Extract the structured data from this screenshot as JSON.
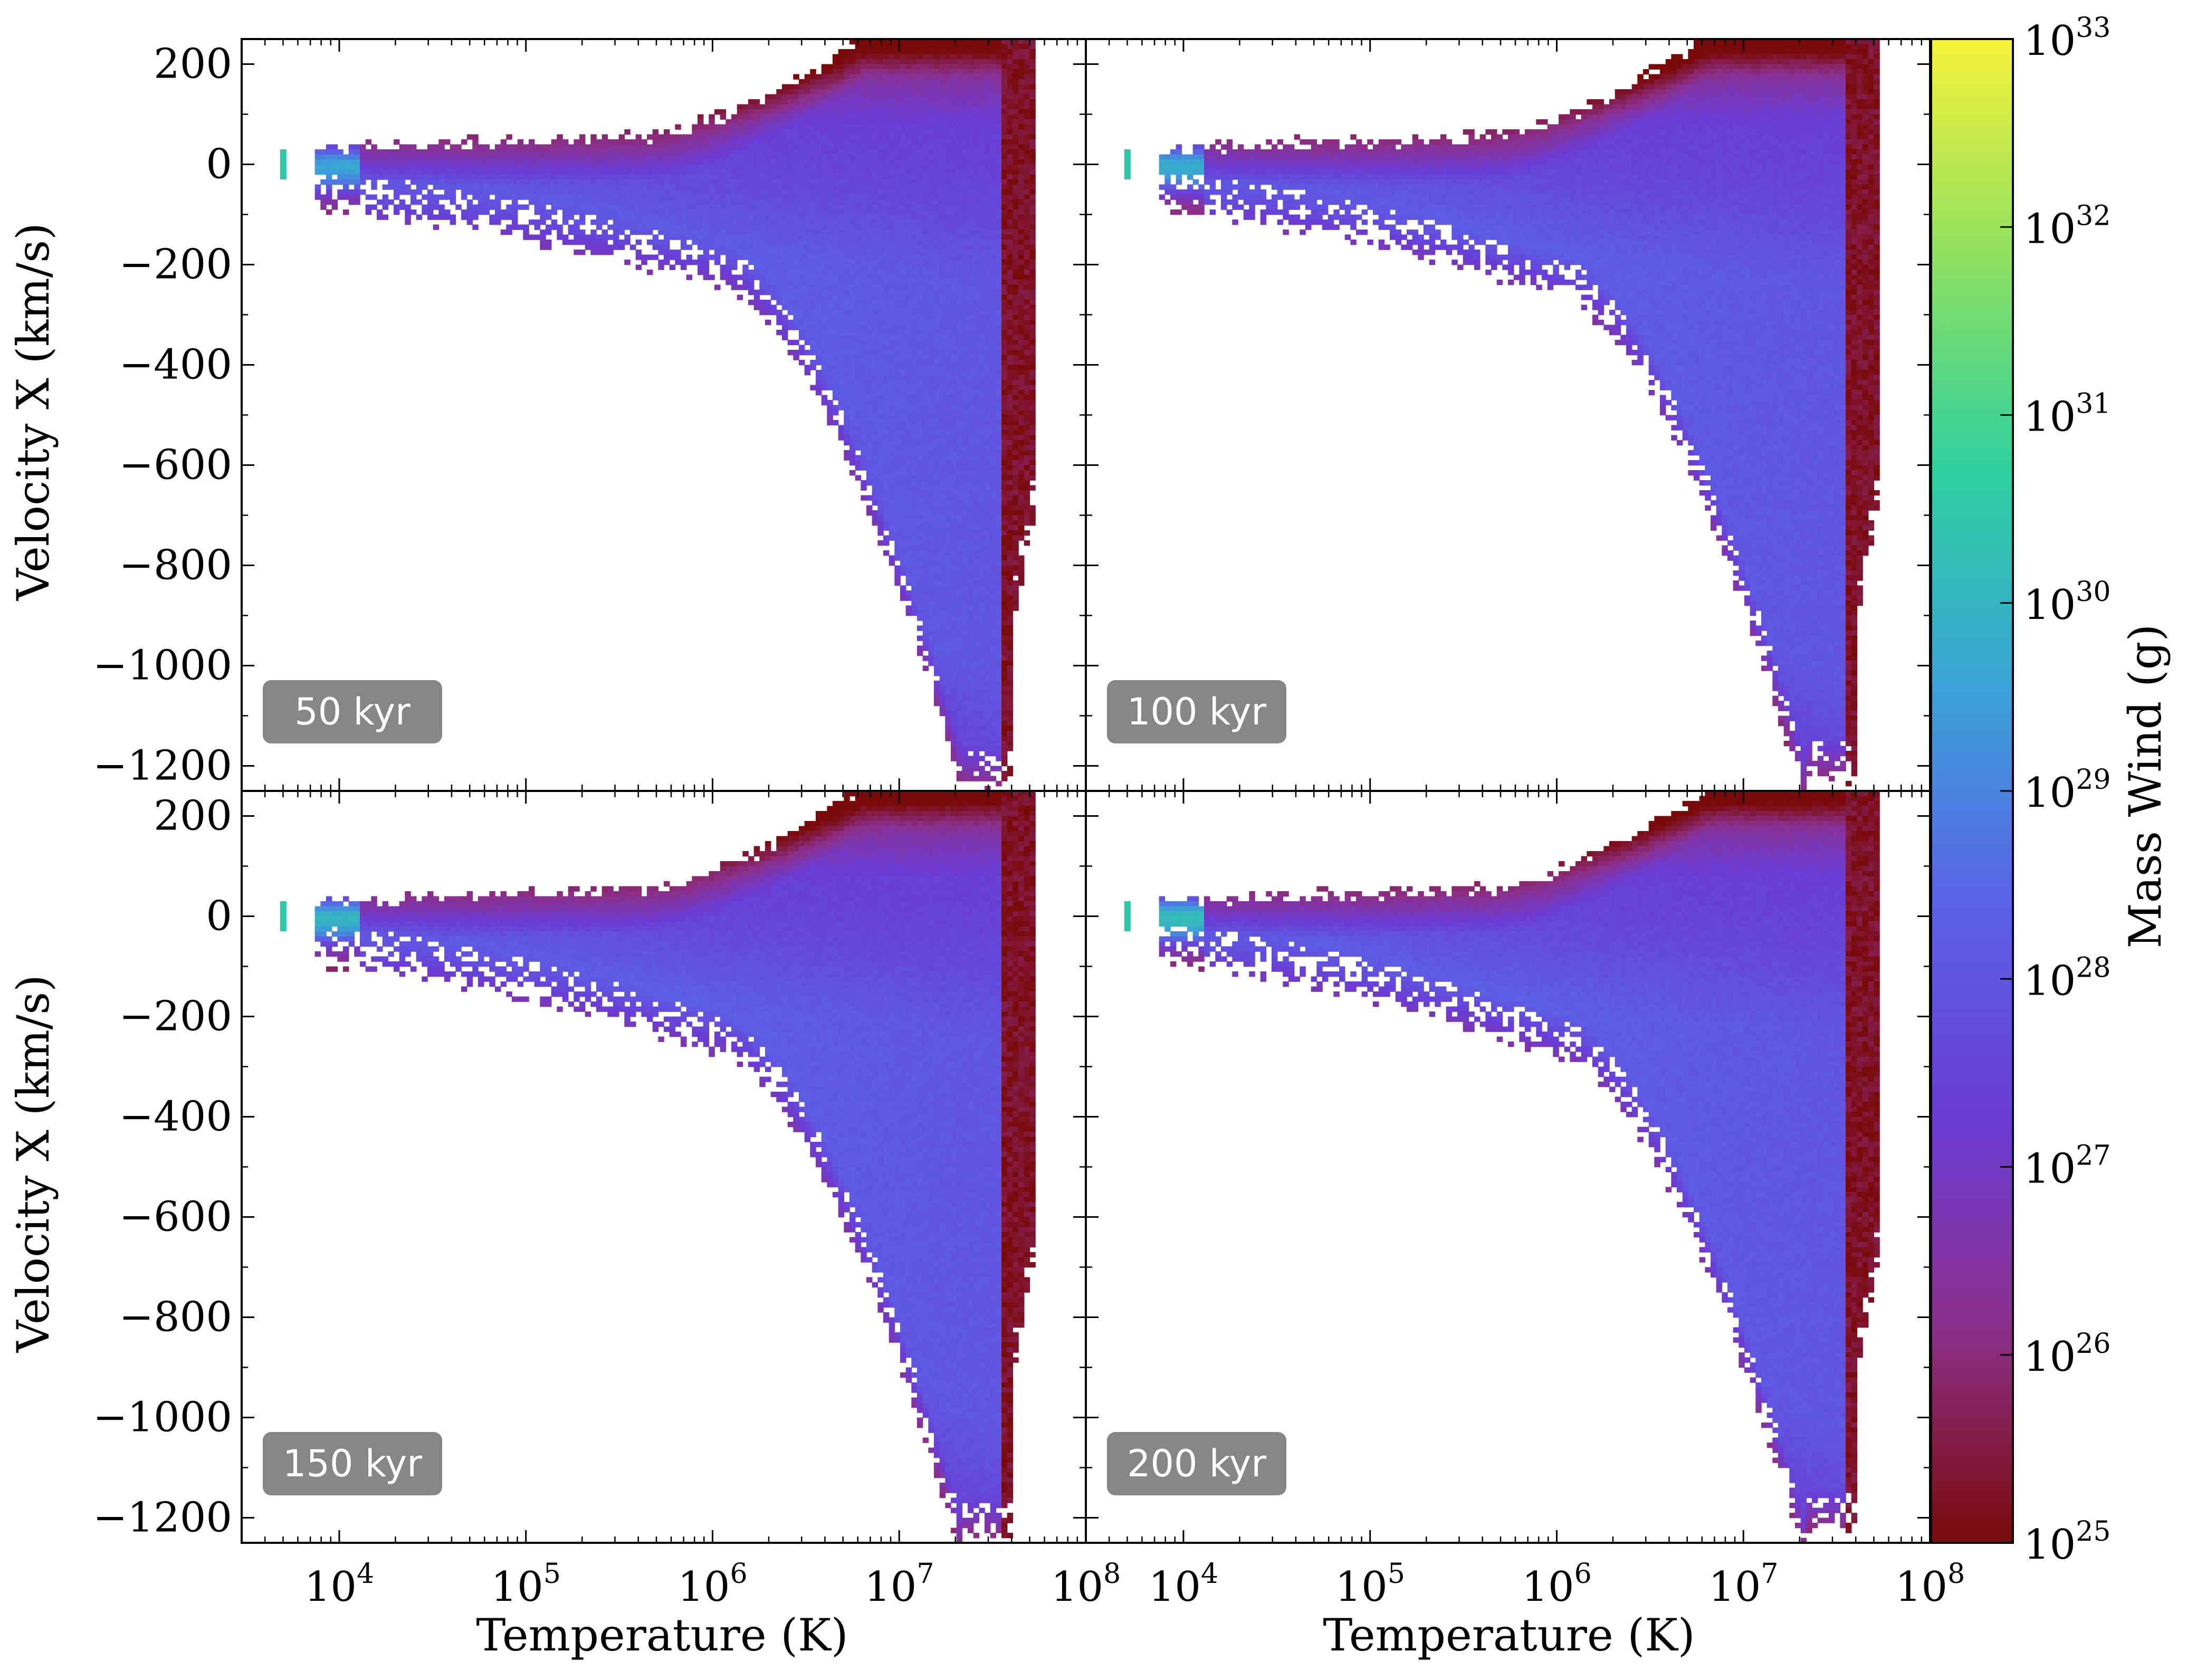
{
  "chart_data": {
    "type": "heatmap",
    "layout": "2x2 panels sharing axes",
    "x_axis": {
      "label": "Temperature  (K)",
      "scale": "log",
      "range": [
        3000,
        100000000
      ],
      "ticks": [
        {
          "value": 10000,
          "base": "10",
          "exp": "4"
        },
        {
          "value": 100000,
          "base": "10",
          "exp": "5"
        },
        {
          "value": 1000000,
          "base": "10",
          "exp": "6"
        },
        {
          "value": 10000000,
          "base": "10",
          "exp": "7"
        },
        {
          "value": 100000000,
          "base": "10",
          "exp": "8"
        }
      ]
    },
    "y_axis": {
      "label": "Velocity X  (km/s)",
      "scale": "linear",
      "range": [
        -1250,
        250
      ],
      "ticks": [
        {
          "value": 200,
          "label": "200"
        },
        {
          "value": 0,
          "label": "0"
        },
        {
          "value": -200,
          "label": "−200"
        },
        {
          "value": -400,
          "label": "−400"
        },
        {
          "value": -600,
          "label": "−600"
        },
        {
          "value": -800,
          "label": "−800"
        },
        {
          "value": -1000,
          "label": "−1000"
        },
        {
          "value": -1200,
          "label": "−1200"
        }
      ]
    },
    "colorbar": {
      "label": "Mass Wind  (g)",
      "scale": "log",
      "range": [
        1e+25,
        1e+33
      ],
      "colormap": "turbo-like (dark red → purple → blue → green → yellow)",
      "stops": [
        "#7a0a0a",
        "#8c2f8a",
        "#6a3cd6",
        "#5a63e6",
        "#3aa3d6",
        "#2fd0a0",
        "#8fe060",
        "#f7f23a"
      ],
      "ticks": [
        {
          "value": 1e+25,
          "base": "10",
          "exp": "25"
        },
        {
          "value": 1e+26,
          "base": "10",
          "exp": "26"
        },
        {
          "value": 1e+27,
          "base": "10",
          "exp": "27"
        },
        {
          "value": 1e+28,
          "base": "10",
          "exp": "28"
        },
        {
          "value": 1e+29,
          "base": "10",
          "exp": "29"
        },
        {
          "value": 1e+30,
          "base": "10",
          "exp": "30"
        },
        {
          "value": 1e+31,
          "base": "10",
          "exp": "31"
        },
        {
          "value": 1e+32,
          "base": "10",
          "exp": "32"
        },
        {
          "value": 1e+33,
          "base": "10",
          "exp": "33"
        }
      ]
    },
    "panels": [
      {
        "label": "50 kyr",
        "row": 0,
        "col": 0,
        "max_neg_velocity": -1250,
        "spread": 0.85,
        "core_log_mass": 30.6
      },
      {
        "label": "100 kyr",
        "row": 0,
        "col": 1,
        "max_neg_velocity": -1230,
        "spread": 1.0,
        "core_log_mass": 30.8
      },
      {
        "label": "150 kyr",
        "row": 1,
        "col": 0,
        "max_neg_velocity": -1250,
        "spread": 1.05,
        "core_log_mass": 31.0
      },
      {
        "label": "200 kyr",
        "row": 1,
        "col": 1,
        "max_neg_velocity": -1230,
        "spread": 1.1,
        "core_log_mass": 31.2
      }
    ]
  }
}
